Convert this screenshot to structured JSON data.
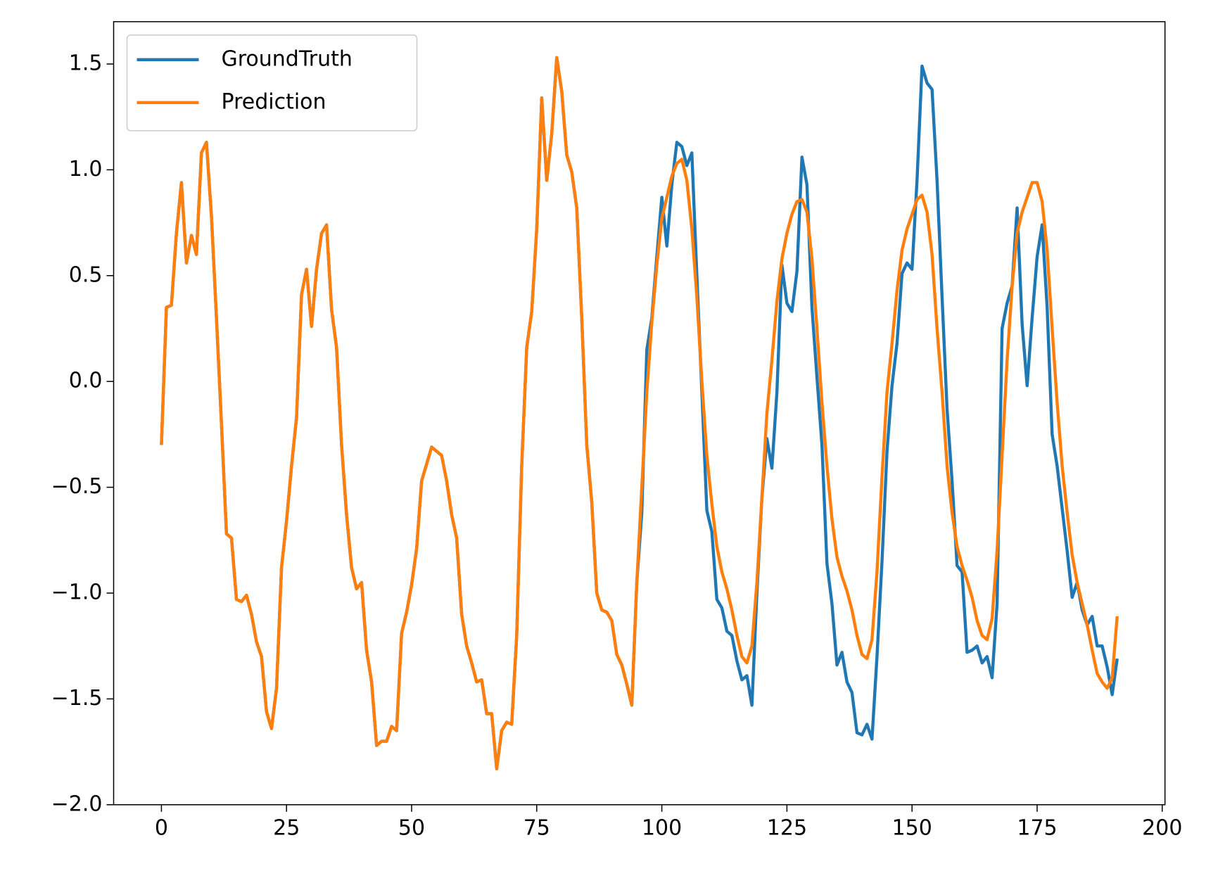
{
  "chart_data": {
    "type": "line",
    "x": [
      0,
      1,
      2,
      3,
      4,
      5,
      6,
      7,
      8,
      9,
      10,
      11,
      12,
      13,
      14,
      15,
      16,
      17,
      18,
      19,
      20,
      21,
      22,
      23,
      24,
      25,
      26,
      27,
      28,
      29,
      30,
      31,
      32,
      33,
      34,
      35,
      36,
      37,
      38,
      39,
      40,
      41,
      42,
      43,
      44,
      45,
      46,
      47,
      48,
      49,
      50,
      51,
      52,
      53,
      54,
      55,
      56,
      57,
      58,
      59,
      60,
      61,
      62,
      63,
      64,
      65,
      66,
      67,
      68,
      69,
      70,
      71,
      72,
      73,
      74,
      75,
      76,
      77,
      78,
      79,
      80,
      81,
      82,
      83,
      84,
      85,
      86,
      87,
      88,
      89,
      90,
      91,
      92,
      93,
      94,
      95,
      96,
      97,
      98,
      99,
      100,
      101,
      102,
      103,
      104,
      105,
      106,
      107,
      108,
      109,
      110,
      111,
      112,
      113,
      114,
      115,
      116,
      117,
      118,
      119,
      120,
      121,
      122,
      123,
      124,
      125,
      126,
      127,
      128,
      129,
      130,
      131,
      132,
      133,
      134,
      135,
      136,
      137,
      138,
      139,
      140,
      141,
      142,
      143,
      144,
      145,
      146,
      147,
      148,
      149,
      150,
      151,
      152,
      153,
      154,
      155,
      156,
      157,
      158,
      159,
      160,
      161,
      162,
      163,
      164,
      165,
      166,
      167,
      168,
      169,
      170,
      171,
      172,
      173,
      174,
      175,
      176,
      177,
      178,
      179,
      180,
      181,
      182,
      183,
      184,
      185,
      186,
      187,
      188,
      189,
      190,
      191
    ],
    "series": [
      {
        "name": "GroundTruth",
        "color": "#1f77b4",
        "values": [
          -0.3,
          0.35,
          0.36,
          0.7,
          0.94,
          0.56,
          0.69,
          0.6,
          1.08,
          1.13,
          0.78,
          0.3,
          -0.2,
          -0.72,
          -0.74,
          -1.03,
          -1.04,
          -1.01,
          -1.1,
          -1.23,
          -1.3,
          -1.56,
          -1.64,
          -1.45,
          -0.88,
          -0.66,
          -0.4,
          -0.17,
          0.41,
          0.53,
          0.26,
          0.53,
          0.7,
          0.74,
          0.34,
          0.16,
          -0.3,
          -0.63,
          -0.88,
          -0.98,
          -0.95,
          -1.27,
          -1.42,
          -1.72,
          -1.7,
          -1.7,
          -1.63,
          -1.65,
          -1.19,
          -1.09,
          -0.96,
          -0.79,
          -0.47,
          -0.39,
          -0.31,
          -0.33,
          -0.35,
          -0.47,
          -0.63,
          -0.74,
          -1.1,
          -1.25,
          -1.33,
          -1.42,
          -1.41,
          -1.57,
          -1.57,
          -1.83,
          -1.65,
          -1.61,
          -1.62,
          -1.2,
          -0.4,
          0.16,
          0.33,
          0.72,
          1.34,
          0.95,
          1.17,
          1.53,
          1.37,
          1.07,
          0.99,
          0.82,
          0.3,
          -0.3,
          -0.57,
          -1.0,
          -1.08,
          -1.09,
          -1.13,
          -1.29,
          -1.34,
          -1.43,
          -1.53,
          -0.95,
          -0.62,
          0.15,
          0.3,
          0.59,
          0.87,
          0.64,
          0.93,
          1.13,
          1.11,
          1.02,
          1.08,
          0.5,
          -0.05,
          -0.61,
          -0.71,
          -1.03,
          -1.07,
          -1.18,
          -1.2,
          -1.32,
          -1.41,
          -1.39,
          -1.53,
          -1.0,
          -0.55,
          -0.27,
          -0.41,
          -0.05,
          0.55,
          0.37,
          0.33,
          0.52,
          1.06,
          0.93,
          0.35,
          0.02,
          -0.3,
          -0.86,
          -1.05,
          -1.34,
          -1.28,
          -1.42,
          -1.47,
          -1.66,
          -1.67,
          -1.62,
          -1.69,
          -1.3,
          -0.85,
          -0.33,
          -0.02,
          0.18,
          0.51,
          0.56,
          0.53,
          0.95,
          1.49,
          1.41,
          1.38,
          0.95,
          0.4,
          -0.13,
          -0.47,
          -0.87,
          -0.9,
          -1.28,
          -1.27,
          -1.25,
          -1.33,
          -1.3,
          -1.4,
          -1.05,
          0.25,
          0.37,
          0.45,
          0.82,
          0.27,
          -0.02,
          0.3,
          0.59,
          0.74,
          0.35,
          -0.25,
          -0.4,
          -0.6,
          -0.8,
          -1.02,
          -0.95,
          -1.08,
          -1.15,
          -1.11,
          -1.25,
          -1.25,
          -1.35,
          -1.48,
          -1.31
        ]
      },
      {
        "name": "Prediction",
        "color": "#ff7f0e",
        "values": [
          -0.3,
          0.35,
          0.36,
          0.7,
          0.94,
          0.56,
          0.69,
          0.6,
          1.08,
          1.13,
          0.78,
          0.3,
          -0.2,
          -0.72,
          -0.74,
          -1.03,
          -1.04,
          -1.01,
          -1.1,
          -1.23,
          -1.3,
          -1.56,
          -1.64,
          -1.45,
          -0.88,
          -0.66,
          -0.4,
          -0.17,
          0.41,
          0.53,
          0.26,
          0.53,
          0.7,
          0.74,
          0.34,
          0.16,
          -0.3,
          -0.63,
          -0.88,
          -0.98,
          -0.95,
          -1.27,
          -1.42,
          -1.72,
          -1.7,
          -1.7,
          -1.63,
          -1.65,
          -1.19,
          -1.09,
          -0.96,
          -0.79,
          -0.47,
          -0.39,
          -0.31,
          -0.33,
          -0.35,
          -0.47,
          -0.63,
          -0.74,
          -1.1,
          -1.25,
          -1.33,
          -1.42,
          -1.41,
          -1.57,
          -1.57,
          -1.83,
          -1.65,
          -1.61,
          -1.62,
          -1.2,
          -0.4,
          0.16,
          0.33,
          0.72,
          1.34,
          0.95,
          1.17,
          1.53,
          1.37,
          1.07,
          0.99,
          0.82,
          0.3,
          -0.3,
          -0.57,
          -1.0,
          -1.08,
          -1.09,
          -1.13,
          -1.29,
          -1.34,
          -1.43,
          -1.53,
          -0.95,
          -0.5,
          -0.05,
          0.28,
          0.55,
          0.77,
          0.87,
          0.97,
          1.03,
          1.05,
          0.95,
          0.72,
          0.4,
          0.0,
          -0.35,
          -0.58,
          -0.78,
          -0.9,
          -0.98,
          -1.08,
          -1.2,
          -1.3,
          -1.33,
          -1.25,
          -0.95,
          -0.55,
          -0.15,
          0.1,
          0.38,
          0.58,
          0.7,
          0.79,
          0.85,
          0.86,
          0.8,
          0.58,
          0.25,
          -0.1,
          -0.4,
          -0.65,
          -0.83,
          -0.92,
          -0.99,
          -1.08,
          -1.2,
          -1.29,
          -1.31,
          -1.22,
          -0.9,
          -0.45,
          -0.05,
          0.18,
          0.43,
          0.62,
          0.72,
          0.79,
          0.86,
          0.88,
          0.8,
          0.6,
          0.25,
          -0.05,
          -0.4,
          -0.62,
          -0.78,
          -0.87,
          -0.94,
          -1.02,
          -1.13,
          -1.2,
          -1.22,
          -1.12,
          -0.8,
          -0.35,
          0.1,
          0.45,
          0.7,
          0.8,
          0.87,
          0.94,
          0.94,
          0.85,
          0.62,
          0.25,
          -0.1,
          -0.4,
          -0.62,
          -0.82,
          -0.95,
          -1.05,
          -1.15,
          -1.27,
          -1.38,
          -1.42,
          -1.45,
          -1.4,
          -1.11
        ]
      }
    ],
    "xlim": [
      -9.55,
      200.55
    ],
    "xticks": [
      0,
      25,
      50,
      75,
      100,
      125,
      150,
      175,
      200
    ],
    "ylim": [
      -2.0,
      1.7
    ],
    "yticks": [
      {
        "value": -2.0,
        "label": "−2.0"
      },
      {
        "value": -1.5,
        "label": "−1.5"
      },
      {
        "value": -1.0,
        "label": "−1.0"
      },
      {
        "value": -0.5,
        "label": "−0.5"
      },
      {
        "value": 0.0,
        "label": "0.0"
      },
      {
        "value": 0.5,
        "label": "0.5"
      },
      {
        "value": 1.0,
        "label": "1.0"
      },
      {
        "value": 1.5,
        "label": "1.5"
      }
    ],
    "legend": "upper left",
    "grid": false
  }
}
